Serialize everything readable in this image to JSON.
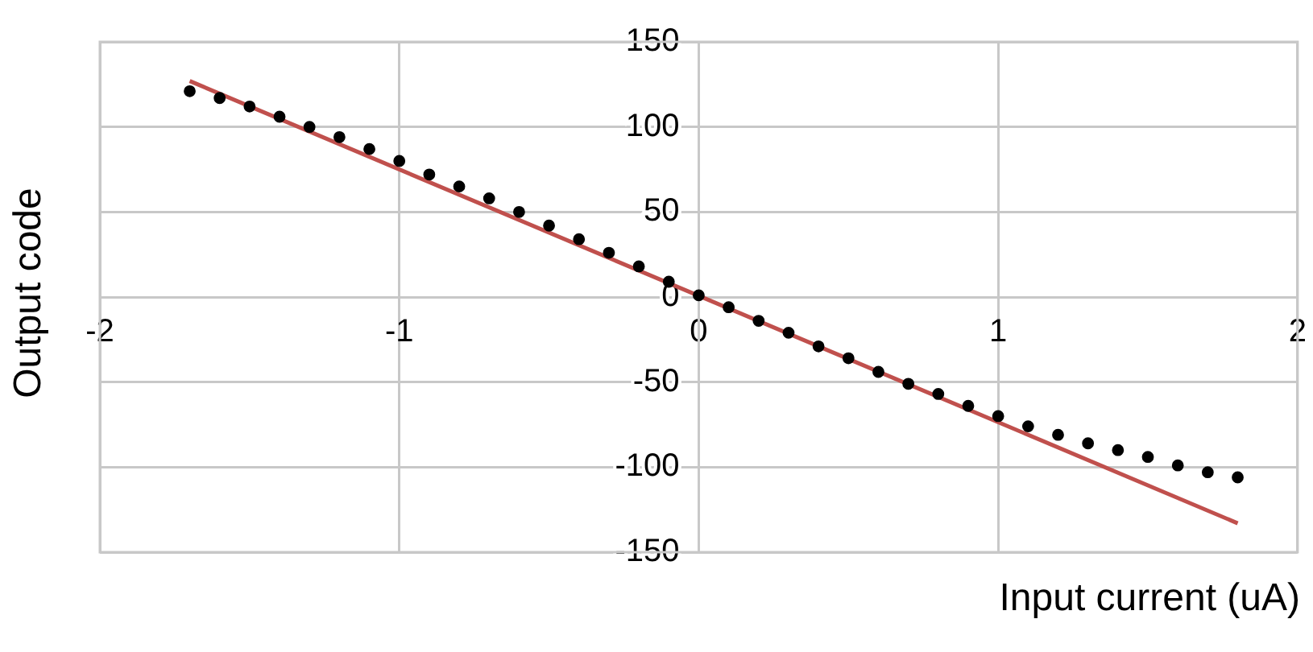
{
  "chart_data": {
    "type": "scatter",
    "xlabel": "Input current (uA)",
    "ylabel": "Output code",
    "x": [
      -1.7,
      -1.6,
      -1.5,
      -1.4,
      -1.3,
      -1.2,
      -1.1,
      -1.0,
      -0.9,
      -0.8,
      -0.7,
      -0.6,
      -0.5,
      -0.4,
      -0.3,
      -0.2,
      -0.1,
      0,
      0.1,
      0.2,
      0.3,
      0.4,
      0.5,
      0.6,
      0.7,
      0.8,
      0.9,
      1.0,
      1.1,
      1.2,
      1.3,
      1.4,
      1.5,
      1.6,
      1.7,
      1.8
    ],
    "series": [
      {
        "color": "#000000",
        "marker": "circle",
        "values": [
          121,
          117,
          112,
          106,
          100,
          94,
          87,
          80,
          72,
          65,
          58,
          50,
          42,
          34,
          26,
          18,
          9,
          1,
          -6,
          -14,
          -21,
          -29,
          -36,
          -44,
          -51,
          -57,
          -64,
          -70,
          -76,
          -81,
          -86,
          -90,
          -94,
          -99,
          -103,
          -106
        ]
      },
      {
        "type": "line",
        "color": "#c0504d",
        "x": [
          -1.7,
          1.8
        ],
        "values": [
          127,
          -133
        ]
      }
    ],
    "xlim": [
      -2,
      2
    ],
    "xticks": [
      -2,
      -1,
      0,
      1,
      2
    ],
    "ylim": [
      -150,
      150
    ],
    "yticks": [
      -150,
      -100,
      -50,
      0,
      50,
      100,
      150
    ],
    "grid": true,
    "legend": false
  }
}
